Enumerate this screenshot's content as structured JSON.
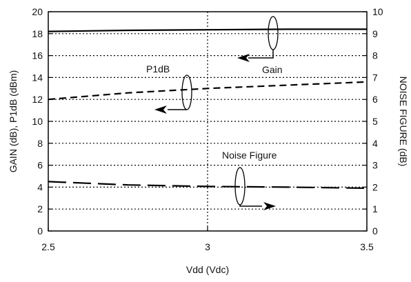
{
  "chart_data": {
    "type": "line",
    "xlabel": "Vdd (Vdc)",
    "ylabel_left": "GAIN (dB), P1dB (dBm)",
    "ylabel_right": "NOISE FIGURE (dB)",
    "xlim": [
      2.5,
      3.5
    ],
    "ylim_left": [
      0,
      20
    ],
    "ylim_right": [
      0,
      10
    ],
    "x_ticks": [
      "2.5",
      "3",
      "3.5"
    ],
    "y_left_ticks": [
      "0",
      "2",
      "4",
      "6",
      "8",
      "10",
      "12",
      "14",
      "16",
      "18",
      "20"
    ],
    "y_right_ticks": [
      "0",
      "1",
      "2",
      "3",
      "4",
      "5",
      "6",
      "7",
      "8",
      "9",
      "10"
    ],
    "grid": true,
    "series": [
      {
        "name": "Gain",
        "axis": "left",
        "style": "solid",
        "x": [
          2.5,
          2.75,
          3.0,
          3.25,
          3.5
        ],
        "values": [
          18.2,
          18.3,
          18.35,
          18.4,
          18.4
        ]
      },
      {
        "name": "P1dB",
        "axis": "left",
        "style": "short-dash",
        "x": [
          2.5,
          2.75,
          3.0,
          3.25,
          3.5
        ],
        "values": [
          12.0,
          12.6,
          13.0,
          13.3,
          13.6
        ]
      },
      {
        "name": "Noise Figure",
        "axis": "right",
        "style": "long-dash",
        "x": [
          2.5,
          2.75,
          3.0,
          3.25,
          3.5
        ],
        "values": [
          2.25,
          2.1,
          2.03,
          2.0,
          1.95
        ]
      }
    ],
    "annotations": [
      "Gain",
      "P1dB",
      "Noise Figure"
    ]
  }
}
